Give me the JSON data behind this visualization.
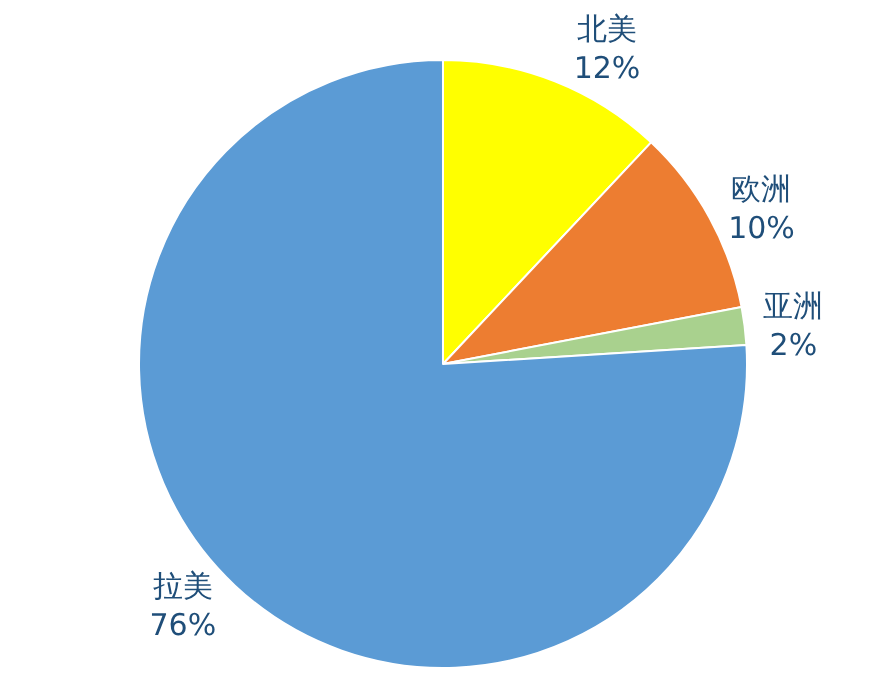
{
  "chart_data": {
    "type": "pie",
    "categories": [
      "北美",
      "欧洲",
      "亚洲",
      "拉美"
    ],
    "values": [
      12,
      10,
      2,
      76
    ],
    "value_labels": [
      "12%",
      "10%",
      "2%",
      "76%"
    ],
    "colors": [
      "#ffff00",
      "#ed7d31",
      "#a9d18e",
      "#5b9bd5"
    ],
    "legend": false
  }
}
